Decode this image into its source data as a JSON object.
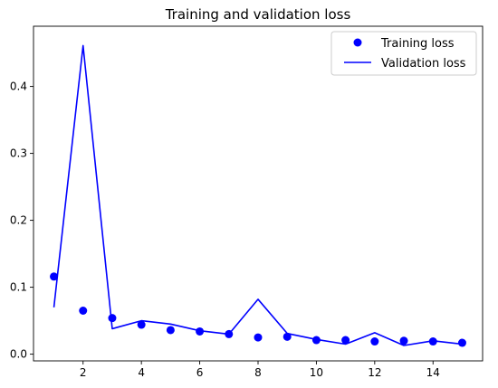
{
  "chart_data": {
    "type": "line",
    "title": "Training and validation loss",
    "xlabel": "",
    "ylabel": "",
    "xlim": [
      0.3,
      15.7
    ],
    "ylim": [
      -0.01,
      0.49
    ],
    "x_ticks": [
      2,
      4,
      6,
      8,
      10,
      12,
      14
    ],
    "y_ticks": [
      0.0,
      0.1,
      0.2,
      0.3,
      0.4
    ],
    "y_tick_labels": [
      "0.0",
      "0.1",
      "0.2",
      "0.3",
      "0.4"
    ],
    "grid": false,
    "legend_position": "top-right",
    "x": [
      1,
      2,
      3,
      4,
      5,
      6,
      7,
      8,
      9,
      10,
      11,
      12,
      13,
      14,
      15
    ],
    "series": [
      {
        "name": "Training loss",
        "style": "points",
        "color": "#0000ff",
        "values": [
          0.116,
          0.065,
          0.054,
          0.044,
          0.036,
          0.034,
          0.03,
          0.025,
          0.026,
          0.021,
          0.021,
          0.019,
          0.02,
          0.019,
          0.017
        ]
      },
      {
        "name": "Validation loss",
        "style": "line",
        "color": "#0000ff",
        "values": [
          0.07,
          0.461,
          0.038,
          0.05,
          0.045,
          0.035,
          0.03,
          0.082,
          0.031,
          0.022,
          0.015,
          0.032,
          0.013,
          0.02,
          0.015
        ]
      }
    ]
  }
}
